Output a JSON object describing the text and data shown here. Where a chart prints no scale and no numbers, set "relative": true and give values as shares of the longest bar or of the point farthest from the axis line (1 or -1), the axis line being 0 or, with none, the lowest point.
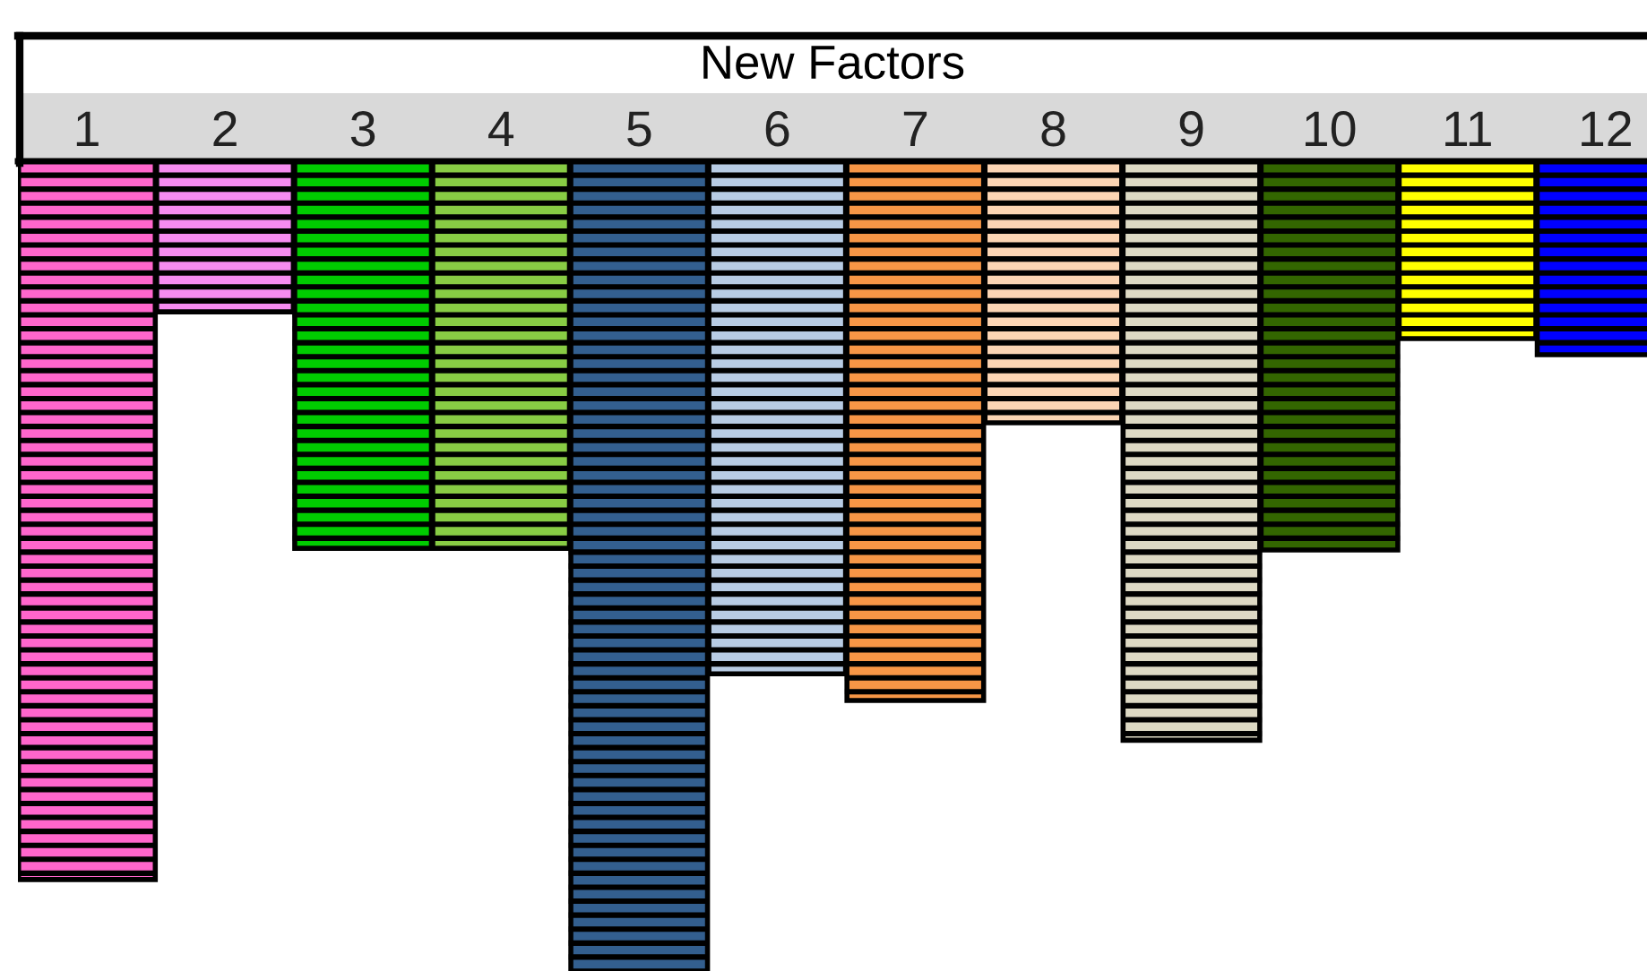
{
  "chart_data": {
    "type": "bar",
    "title": "New Factors",
    "relative": true,
    "categories": [
      "1",
      "2",
      "3",
      "4",
      "5",
      "6",
      "7",
      "8",
      "9",
      "10",
      "11",
      "12"
    ],
    "values": [
      -0.887,
      -0.186,
      -0.478,
      -0.478,
      -1,
      -0.633,
      -0.666,
      -0.323,
      -0.715,
      -0.48,
      -0.219,
      -0.239
    ],
    "colors": [
      "#ff66cc",
      "#f58cf0",
      "#00cc00",
      "#88cc44",
      "#335f8f",
      "#b8cce4",
      "#f79646",
      "#fcd5b4",
      "#ddd9c4",
      "#336600",
      "#ffff00",
      "#0000ff"
    ],
    "grid": false,
    "legend": false
  }
}
